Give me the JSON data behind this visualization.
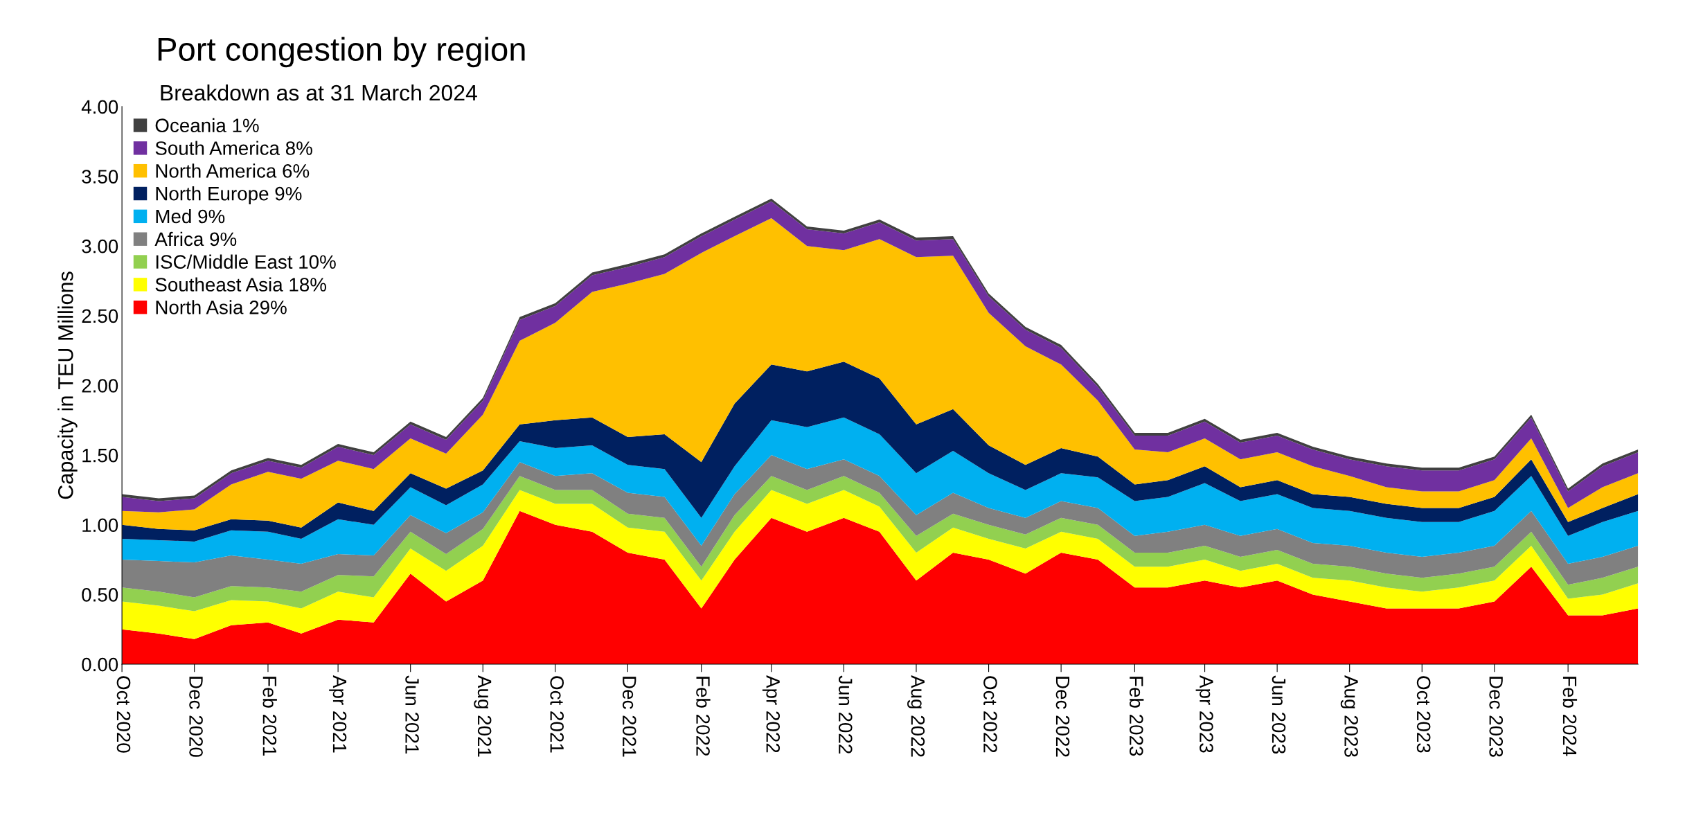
{
  "chart_data": {
    "type": "area",
    "stacked": true,
    "title": "Port congestion by region",
    "subtitle": "Breakdown as at 31 March 2024",
    "ylabel": "Capacity in TEU Millions",
    "x": [
      "2020-10-01",
      "2020-11-01",
      "2020-12-01",
      "2021-01-01",
      "2021-02-01",
      "2021-03-01",
      "2021-04-01",
      "2021-05-01",
      "2021-06-01",
      "2021-07-01",
      "2021-08-01",
      "2021-09-01",
      "2021-10-01",
      "2021-11-01",
      "2021-12-01",
      "2022-01-01",
      "2022-02-01",
      "2022-03-01",
      "2022-04-01",
      "2022-05-01",
      "2022-06-01",
      "2022-07-01",
      "2022-08-01",
      "2022-09-01",
      "2022-10-01",
      "2022-11-01",
      "2022-12-01",
      "2023-01-01",
      "2023-02-01",
      "2023-03-01",
      "2023-04-01",
      "2023-05-01",
      "2023-06-01",
      "2023-07-01",
      "2023-08-01",
      "2023-09-01",
      "2023-10-01",
      "2023-11-01",
      "2023-12-01",
      "2024-01-01",
      "2024-02-01",
      "2024-03-01",
      "2024-03-31"
    ],
    "series": [
      {
        "name": "North Asia 29%",
        "color": "#ff0000",
        "values": [
          0.25,
          0.22,
          0.18,
          0.28,
          0.3,
          0.22,
          0.32,
          0.3,
          0.65,
          0.45,
          0.6,
          1.1,
          1.0,
          0.95,
          0.8,
          0.75,
          0.4,
          0.75,
          1.05,
          0.95,
          1.05,
          0.95,
          0.6,
          0.8,
          0.75,
          0.65,
          0.8,
          0.75,
          0.55,
          0.55,
          0.6,
          0.55,
          0.6,
          0.5,
          0.45,
          0.4,
          0.4,
          0.4,
          0.45,
          0.7,
          0.35,
          0.35,
          0.4
        ]
      },
      {
        "name": "Southeast Asia 18%",
        "color": "#ffff00",
        "values": [
          0.2,
          0.2,
          0.2,
          0.18,
          0.15,
          0.18,
          0.2,
          0.18,
          0.18,
          0.22,
          0.25,
          0.15,
          0.15,
          0.2,
          0.18,
          0.2,
          0.2,
          0.2,
          0.2,
          0.2,
          0.2,
          0.18,
          0.2,
          0.18,
          0.15,
          0.18,
          0.15,
          0.15,
          0.15,
          0.15,
          0.15,
          0.12,
          0.12,
          0.12,
          0.15,
          0.15,
          0.12,
          0.15,
          0.15,
          0.15,
          0.12,
          0.15,
          0.18
        ]
      },
      {
        "name": "ISC/Middle East 10%",
        "color": "#92d050",
        "values": [
          0.1,
          0.1,
          0.1,
          0.1,
          0.1,
          0.12,
          0.12,
          0.15,
          0.12,
          0.12,
          0.12,
          0.1,
          0.1,
          0.1,
          0.1,
          0.1,
          0.1,
          0.12,
          0.1,
          0.1,
          0.1,
          0.1,
          0.12,
          0.1,
          0.1,
          0.1,
          0.1,
          0.1,
          0.1,
          0.1,
          0.1,
          0.1,
          0.1,
          0.1,
          0.1,
          0.1,
          0.1,
          0.1,
          0.1,
          0.1,
          0.1,
          0.12,
          0.12
        ]
      },
      {
        "name": "Africa 9%",
        "color": "#808080",
        "values": [
          0.2,
          0.22,
          0.25,
          0.22,
          0.2,
          0.2,
          0.15,
          0.15,
          0.12,
          0.15,
          0.12,
          0.1,
          0.1,
          0.12,
          0.15,
          0.15,
          0.15,
          0.15,
          0.15,
          0.15,
          0.12,
          0.12,
          0.15,
          0.15,
          0.12,
          0.12,
          0.12,
          0.12,
          0.12,
          0.15,
          0.15,
          0.15,
          0.15,
          0.15,
          0.15,
          0.15,
          0.15,
          0.15,
          0.15,
          0.15,
          0.15,
          0.15,
          0.15
        ]
      },
      {
        "name": "Med 9%",
        "color": "#00b0f0",
        "values": [
          0.15,
          0.15,
          0.15,
          0.18,
          0.2,
          0.18,
          0.25,
          0.22,
          0.2,
          0.2,
          0.2,
          0.15,
          0.2,
          0.2,
          0.2,
          0.2,
          0.2,
          0.2,
          0.25,
          0.3,
          0.3,
          0.3,
          0.3,
          0.3,
          0.25,
          0.2,
          0.2,
          0.22,
          0.25,
          0.25,
          0.3,
          0.25,
          0.25,
          0.25,
          0.25,
          0.25,
          0.25,
          0.22,
          0.25,
          0.25,
          0.2,
          0.25,
          0.25
        ]
      },
      {
        "name": "North Europe 9%",
        "color": "#002060",
        "values": [
          0.1,
          0.08,
          0.08,
          0.08,
          0.08,
          0.08,
          0.12,
          0.1,
          0.1,
          0.12,
          0.1,
          0.12,
          0.2,
          0.2,
          0.2,
          0.25,
          0.4,
          0.45,
          0.4,
          0.4,
          0.4,
          0.4,
          0.35,
          0.3,
          0.2,
          0.18,
          0.18,
          0.15,
          0.12,
          0.12,
          0.12,
          0.1,
          0.1,
          0.1,
          0.1,
          0.1,
          0.1,
          0.1,
          0.1,
          0.12,
          0.1,
          0.1,
          0.12
        ]
      },
      {
        "name": "North America 6%",
        "color": "#ffc000",
        "values": [
          0.1,
          0.12,
          0.15,
          0.25,
          0.35,
          0.35,
          0.3,
          0.3,
          0.25,
          0.25,
          0.4,
          0.6,
          0.7,
          0.9,
          1.1,
          1.15,
          1.5,
          1.2,
          1.05,
          0.9,
          0.8,
          1.0,
          1.2,
          1.1,
          0.95,
          0.85,
          0.6,
          0.4,
          0.25,
          0.2,
          0.2,
          0.2,
          0.2,
          0.2,
          0.15,
          0.12,
          0.12,
          0.12,
          0.12,
          0.15,
          0.1,
          0.15,
          0.15
        ]
      },
      {
        "name": "South America 8%",
        "color": "#7030a0",
        "values": [
          0.1,
          0.08,
          0.08,
          0.08,
          0.08,
          0.08,
          0.1,
          0.1,
          0.1,
          0.1,
          0.1,
          0.15,
          0.12,
          0.12,
          0.12,
          0.12,
          0.12,
          0.12,
          0.12,
          0.12,
          0.12,
          0.12,
          0.12,
          0.12,
          0.12,
          0.12,
          0.12,
          0.1,
          0.1,
          0.12,
          0.12,
          0.12,
          0.12,
          0.12,
          0.12,
          0.15,
          0.15,
          0.15,
          0.15,
          0.15,
          0.12,
          0.15,
          0.15
        ]
      },
      {
        "name": "Oceania 1%",
        "color": "#404040",
        "values": [
          0.02,
          0.02,
          0.02,
          0.02,
          0.02,
          0.02,
          0.02,
          0.02,
          0.02,
          0.02,
          0.02,
          0.02,
          0.02,
          0.02,
          0.02,
          0.02,
          0.02,
          0.02,
          0.02,
          0.02,
          0.02,
          0.02,
          0.02,
          0.02,
          0.02,
          0.02,
          0.02,
          0.02,
          0.02,
          0.02,
          0.02,
          0.02,
          0.02,
          0.02,
          0.02,
          0.02,
          0.02,
          0.02,
          0.02,
          0.02,
          0.02,
          0.02,
          0.02
        ]
      }
    ],
    "xlim": [
      "2020-10-01",
      "2024-03-31"
    ],
    "xticks": [
      {
        "value": "2020-10-01",
        "label": "Oct 2020"
      },
      {
        "value": "2020-12-01",
        "label": "Dec 2020"
      },
      {
        "value": "2021-02-01",
        "label": "Feb 2021"
      },
      {
        "value": "2021-04-01",
        "label": "Apr 2021"
      },
      {
        "value": "2021-06-01",
        "label": "Jun 2021"
      },
      {
        "value": "2021-08-01",
        "label": "Aug 2021"
      },
      {
        "value": "2021-10-01",
        "label": "Oct 2021"
      },
      {
        "value": "2021-12-01",
        "label": "Dec 2021"
      },
      {
        "value": "2022-02-01",
        "label": "Feb 2022"
      },
      {
        "value": "2022-04-01",
        "label": "Apr 2022"
      },
      {
        "value": "2022-06-01",
        "label": "Jun 2022"
      },
      {
        "value": "2022-08-01",
        "label": "Aug 2022"
      },
      {
        "value": "2022-10-01",
        "label": "Oct 2022"
      },
      {
        "value": "2022-12-01",
        "label": "Dec 2022"
      },
      {
        "value": "2023-02-01",
        "label": "Feb 2023"
      },
      {
        "value": "2023-04-01",
        "label": "Apr 2023"
      },
      {
        "value": "2023-06-01",
        "label": "Jun 2023"
      },
      {
        "value": "2023-08-01",
        "label": "Aug 2023"
      },
      {
        "value": "2023-10-01",
        "label": "Oct 2023"
      },
      {
        "value": "2023-12-01",
        "label": "Dec 2023"
      },
      {
        "value": "2024-02-01",
        "label": "Feb 2024"
      }
    ],
    "ylim": [
      0,
      4
    ],
    "yticks": [
      {
        "value": 0,
        "label": "0.00"
      },
      {
        "value": 0.5,
        "label": "0.50"
      },
      {
        "value": 1,
        "label": "1.00"
      },
      {
        "value": 1.5,
        "label": "1.50"
      },
      {
        "value": 2,
        "label": "2.00"
      },
      {
        "value": 2.5,
        "label": "2.50"
      },
      {
        "value": 3,
        "label": "3.00"
      },
      {
        "value": 3.5,
        "label": "3.50"
      },
      {
        "value": 4,
        "label": "4.00"
      }
    ],
    "grid": false,
    "legend": "top left"
  }
}
